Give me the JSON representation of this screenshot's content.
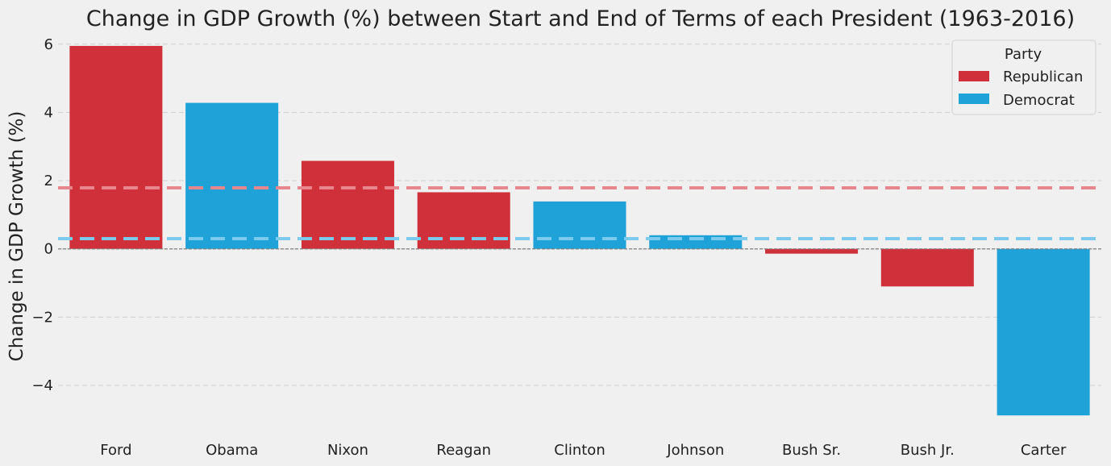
{
  "chart_data": {
    "type": "bar",
    "title": "Change in GDP Growth (%) between Start and End of Terms of each President (1963-2016)",
    "xlabel": "",
    "ylabel": "Change in GDP Growth (%)",
    "ylim": [
      -5.3,
      6.35
    ],
    "yticks": [
      -4,
      -2,
      0,
      2,
      4,
      6
    ],
    "ytick_labels": [
      "−4",
      "−2",
      "0",
      "2",
      "4",
      "6"
    ],
    "categories": [
      "Ford",
      "Obama",
      "Nixon",
      "Reagan",
      "Clinton",
      "Johnson",
      "Bush Sr.",
      "Bush Jr.",
      "Carter"
    ],
    "values": [
      5.95,
      4.28,
      2.58,
      1.66,
      1.39,
      0.4,
      -0.14,
      -1.1,
      -4.88
    ],
    "party": [
      "Republican",
      "Democrat",
      "Republican",
      "Republican",
      "Democrat",
      "Democrat",
      "Republican",
      "Republican",
      "Democrat"
    ],
    "reference_lines": [
      {
        "party": "Republican",
        "value": 1.79,
        "style": "dashed"
      },
      {
        "party": "Democrat",
        "value": 0.3,
        "style": "dashed"
      }
    ],
    "zero_line": true,
    "grid": "y",
    "legend": {
      "title": "Party",
      "placement": "top-right",
      "entries": [
        "Republican",
        "Democrat"
      ]
    },
    "colors": {
      "Republican": "#d0303a",
      "Democrat": "#1ea2d8",
      "Republican_ref": "#e8868d",
      "Democrat_ref": "#7ccbee"
    }
  }
}
